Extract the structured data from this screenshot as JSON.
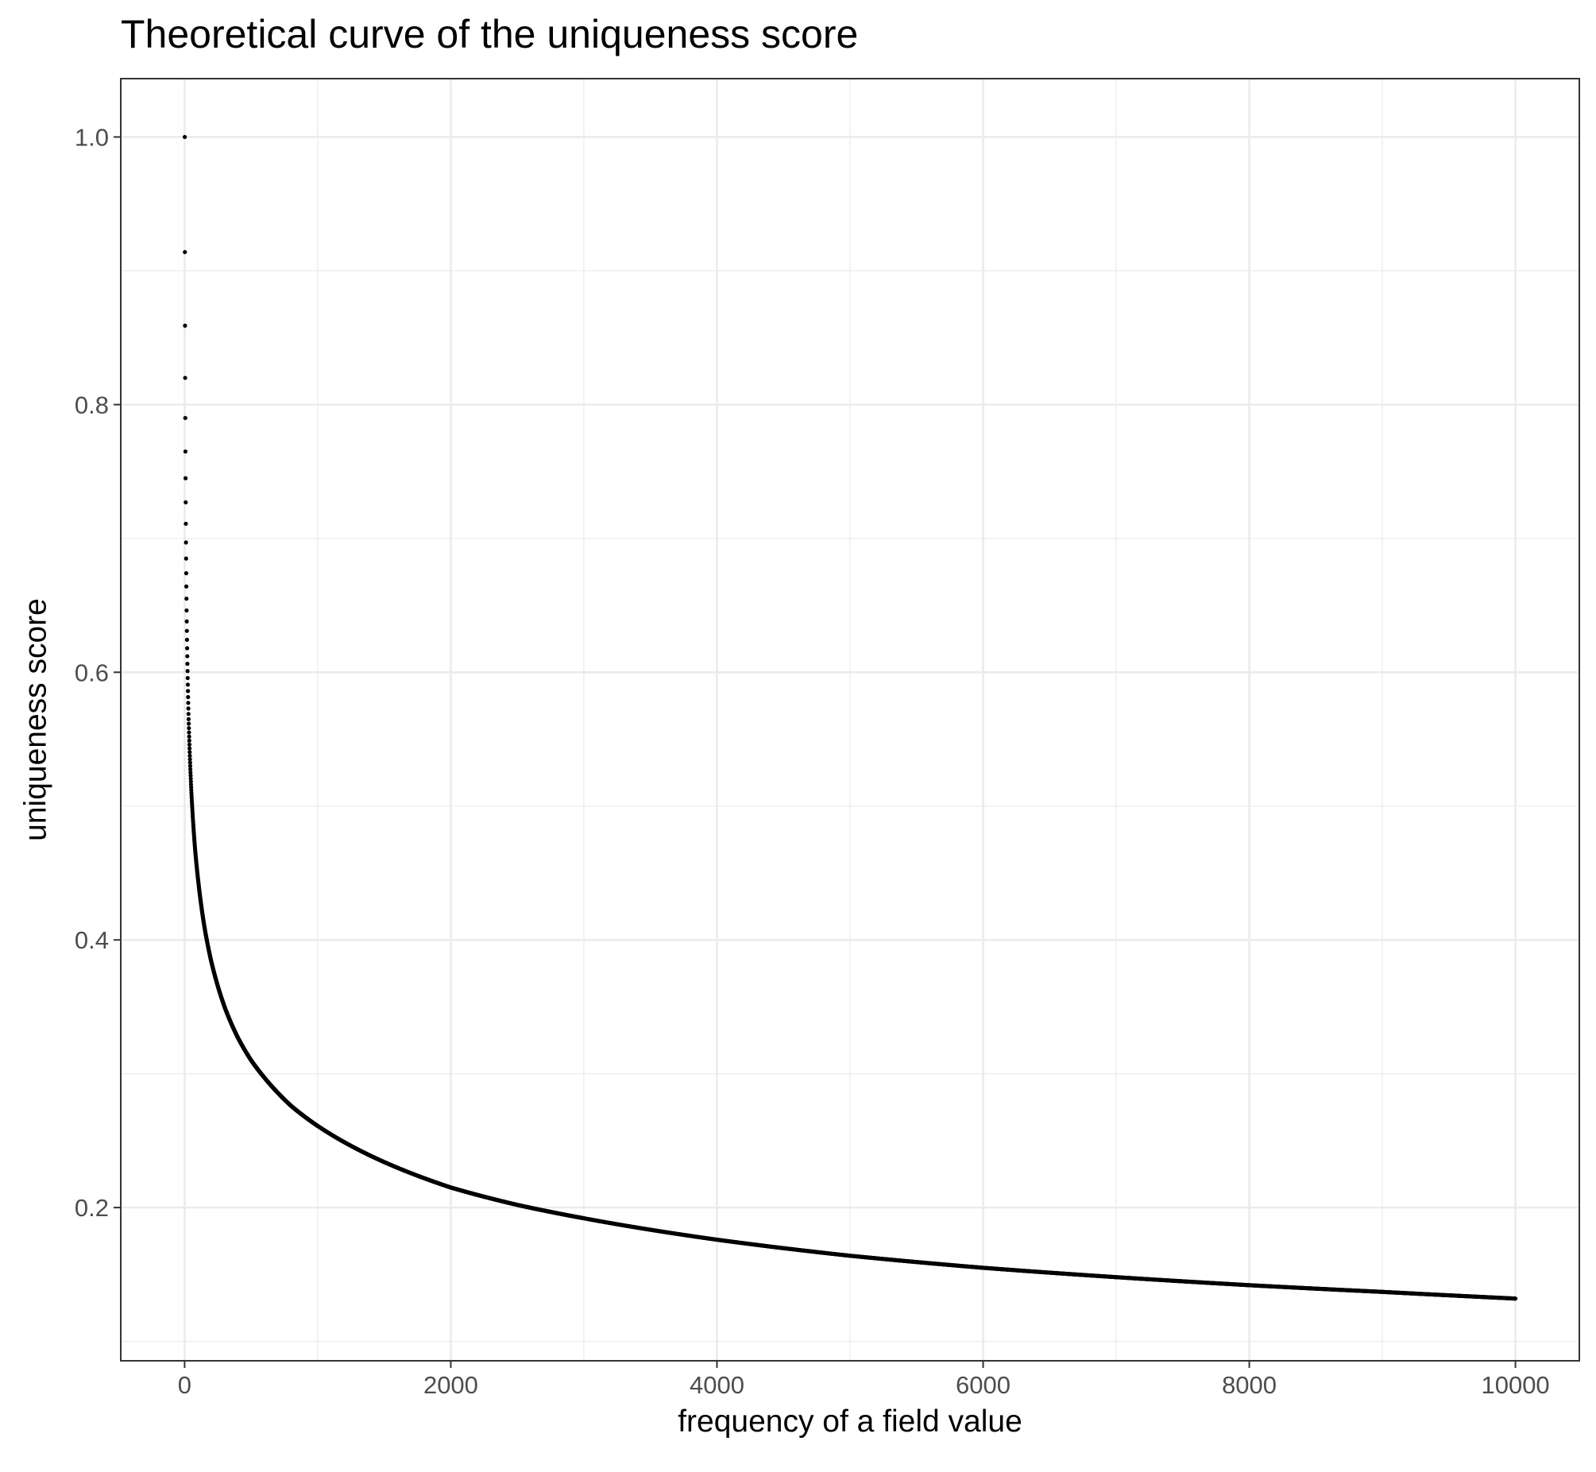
{
  "chart_data": {
    "type": "scatter",
    "title": "Theoretical curve of the uniqueness score",
    "xlabel": "frequency of a field value",
    "ylabel": "uniqueness score",
    "xlim": [
      -480,
      10480
    ],
    "ylim": [
      0.0855,
      1.0436
    ],
    "x_ticks": [
      0,
      2000,
      4000,
      6000,
      8000,
      10000
    ],
    "x_tick_labels": [
      "0",
      "2000",
      "4000",
      "6000",
      "8000",
      "10000"
    ],
    "y_ticks": [
      0.2,
      0.4,
      0.6,
      0.8,
      1.0
    ],
    "y_tick_labels": [
      "0.2",
      "0.4",
      "0.6",
      "0.8",
      "1.0"
    ],
    "grid": true,
    "legend": "none",
    "series": [
      {
        "x": [
          1,
          2,
          3,
          4,
          5,
          6,
          7,
          8,
          9,
          10,
          12,
          14,
          16,
          20,
          25,
          30,
          40,
          50,
          60,
          80,
          100,
          150,
          200,
          300,
          400,
          500,
          600,
          800,
          1000,
          1500,
          2000,
          2500,
          3000,
          4000,
          5000,
          6000,
          7000,
          8000,
          9000,
          10000
        ],
        "y": [
          1.0,
          0.914,
          0.859,
          0.82,
          0.79,
          0.765,
          0.745,
          0.727,
          0.711,
          0.697,
          0.674,
          0.655,
          0.638,
          0.612,
          0.586,
          0.565,
          0.535,
          0.512,
          0.494,
          0.466,
          0.446,
          0.409,
          0.384,
          0.35,
          0.327,
          0.31,
          0.297,
          0.276,
          0.261,
          0.234,
          0.215,
          0.202,
          0.192,
          0.176,
          0.164,
          0.155,
          0.148,
          0.142,
          0.137,
          0.132
        ]
      }
    ]
  }
}
